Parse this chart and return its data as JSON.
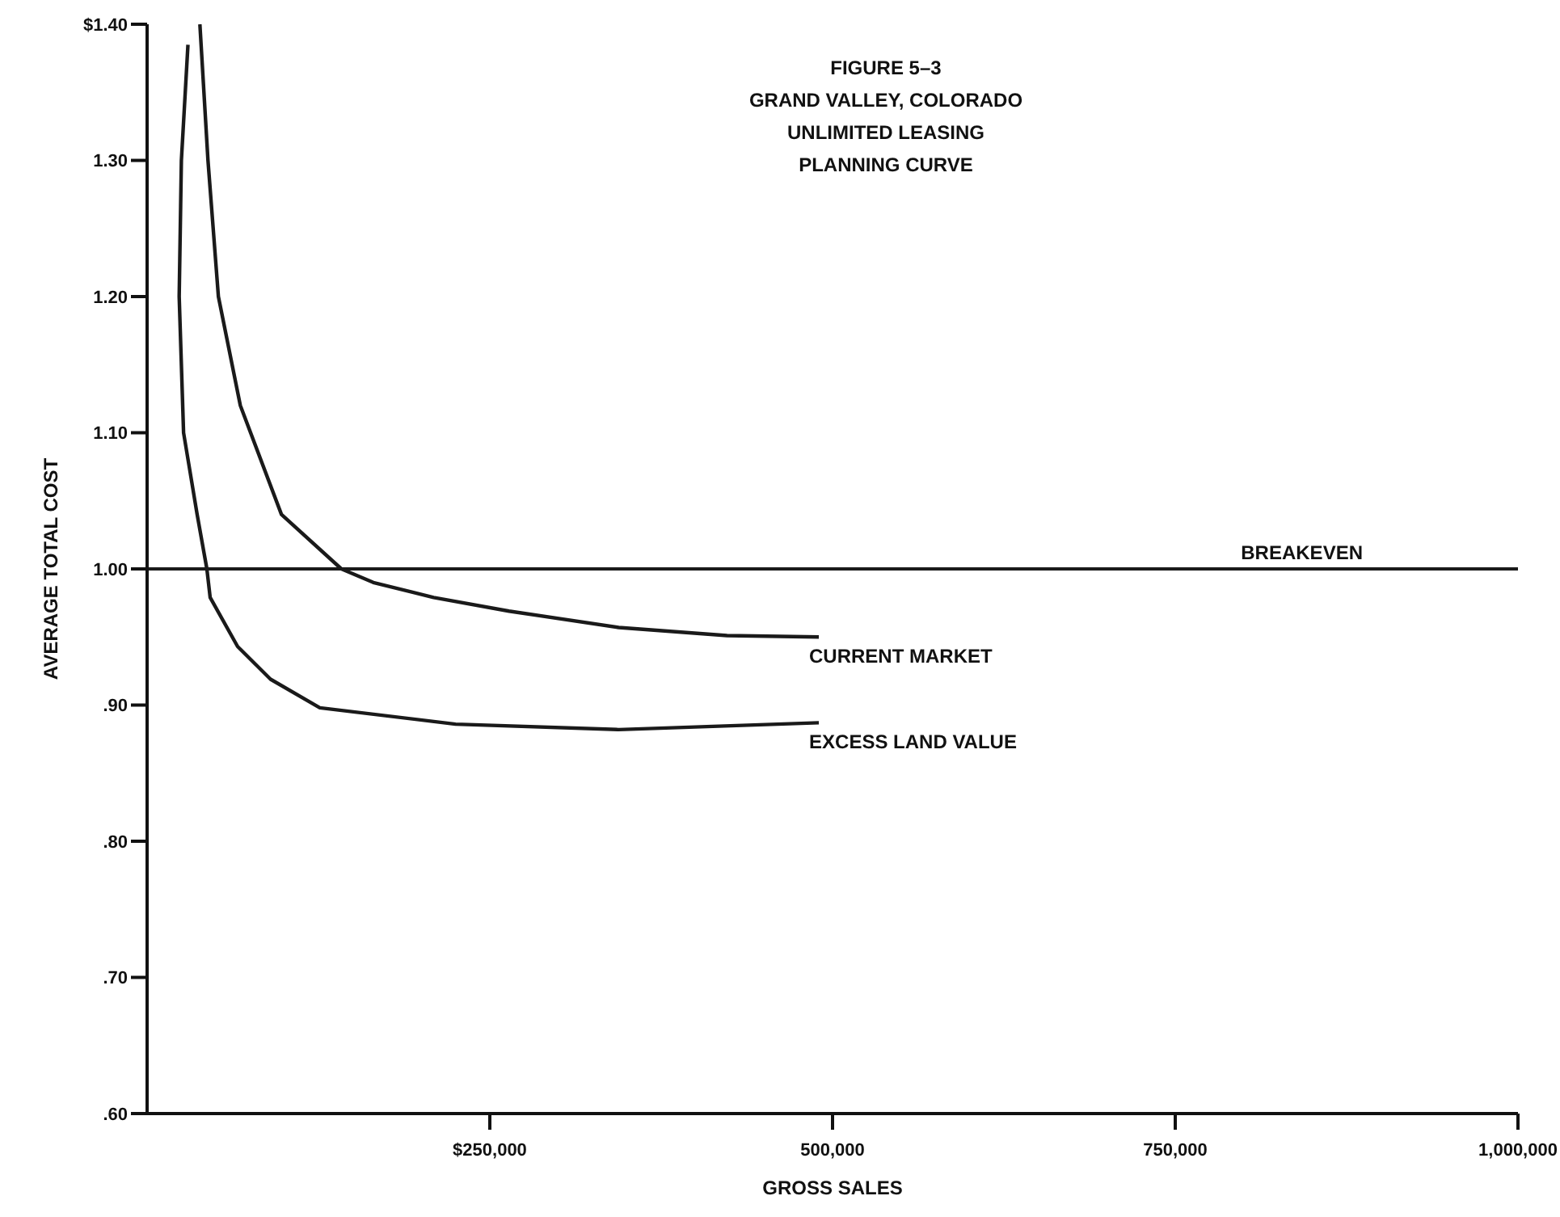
{
  "chart_data": {
    "type": "line",
    "title": "FIGURE 5–3\nGRAND VALLEY, COLORADO\nUNLIMITED LEASING\nPLANNING CURVE",
    "xlabel": "GROSS SALES",
    "ylabel": "AVERAGE TOTAL COST",
    "xlim": [
      0,
      1000000
    ],
    "xticks": [
      {
        "value": 250000,
        "label": "$250,000"
      },
      {
        "value": 500000,
        "label": "500,000"
      },
      {
        "value": 750000,
        "label": "750,000"
      },
      {
        "value": 1000000,
        "label": "1,000,000"
      }
    ],
    "ylim": [
      0.6,
      1.4
    ],
    "yticks": [
      {
        "value": 0.6,
        "label": ".60"
      },
      {
        "value": 0.7,
        "label": ".70"
      },
      {
        "value": 0.8,
        "label": ".80"
      },
      {
        "value": 0.9,
        "label": ".90"
      },
      {
        "value": 1.0,
        "label": "1.00"
      },
      {
        "value": 1.1,
        "label": "1.10"
      },
      {
        "value": 1.2,
        "label": "1.20"
      },
      {
        "value": 1.3,
        "label": "1.30"
      },
      {
        "value": 1.4,
        "label": "$1.40"
      }
    ],
    "marker": "none",
    "line_style": "solid",
    "series": [
      {
        "name": "CURRENT MARKET",
        "color": "#1a1a1a",
        "x": [
          38500,
          44400,
          52000,
          68000,
          98000,
          141700,
          165000,
          209000,
          264000,
          344000,
          423000,
          490000
        ],
        "values": [
          1.4,
          1.3,
          1.2,
          1.12,
          1.04,
          1.0,
          0.99,
          0.979,
          0.969,
          0.957,
          0.951,
          0.95
        ]
      },
      {
        "name": "EXCESS LAND VALUE",
        "color": "#1a1a1a",
        "x": [
          29800,
          25000,
          23400,
          26600,
          36500,
          43600,
          46000,
          66000,
          90000,
          126000,
          225000,
          344000,
          490000
        ],
        "values": [
          1.385,
          1.3,
          1.2,
          1.1,
          1.04,
          1.0,
          0.979,
          0.943,
          0.919,
          0.898,
          0.886,
          0.882,
          0.887
        ]
      }
    ],
    "ref_lines": [
      {
        "axis": "y",
        "value": 1.0,
        "label": "BREAKEVEN",
        "color": "#1a1a1a"
      }
    ]
  }
}
